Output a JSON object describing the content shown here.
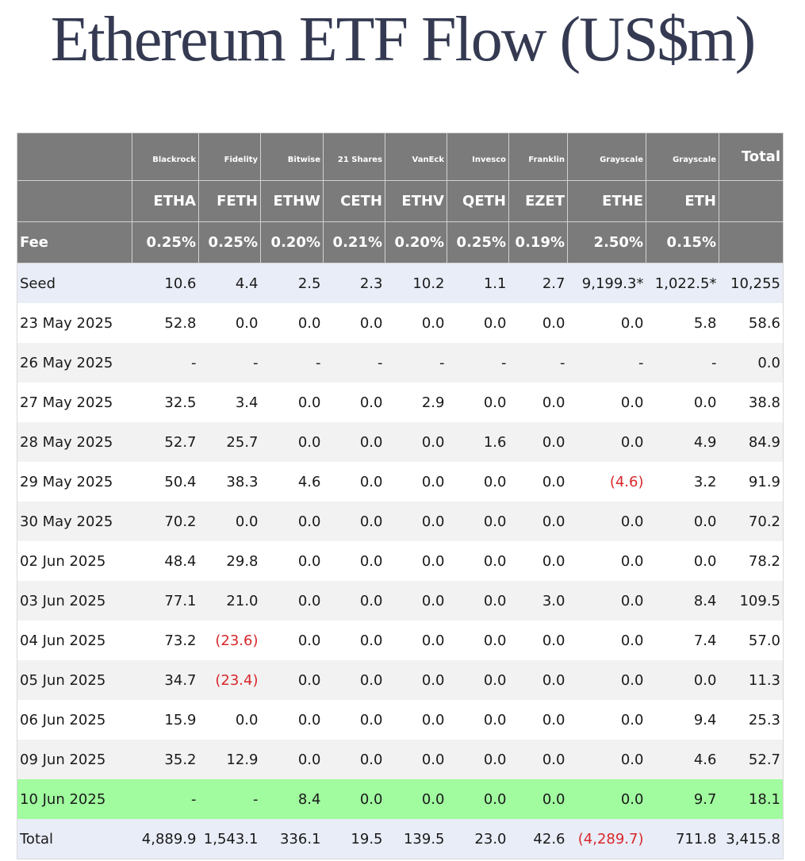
{
  "title": "Ethereum ETF Flow (US$m)",
  "colors": {
    "header_bg": "#7b7b7b",
    "negative": "#d8272b",
    "highlight_row": "#a1fb9f",
    "seed_total_row": "#e9edf7",
    "alt_row": "#f2f2f2"
  },
  "providers": [
    "Blackrock",
    "Fidelity",
    "Bitwise",
    "21 Shares",
    "VanEck",
    "Invesco",
    "Franklin",
    "Grayscale",
    "Grayscale"
  ],
  "total_header": "Total",
  "tickers": [
    "ETHA",
    "FETH",
    "ETHW",
    "CETH",
    "ETHV",
    "QETH",
    "EZET",
    "ETHE",
    "ETH"
  ],
  "fee_label": "Fee",
  "fees": [
    "0.25%",
    "0.25%",
    "0.20%",
    "0.21%",
    "0.20%",
    "0.25%",
    "0.19%",
    "2.50%",
    "0.15%"
  ],
  "rows": [
    {
      "label": "Seed",
      "values": [
        "10.6",
        "4.4",
        "2.5",
        "2.3",
        "10.2",
        "1.1",
        "2.7",
        "9,199.3*",
        "1,022.5*",
        "10,255"
      ],
      "style": "blue"
    },
    {
      "label": "23 May 2025",
      "values": [
        "52.8",
        "0.0",
        "0.0",
        "0.0",
        "0.0",
        "0.0",
        "0.0",
        "0.0",
        "5.8",
        "58.6"
      ],
      "style": "white"
    },
    {
      "label": "26 May 2025",
      "values": [
        "-",
        "-",
        "-",
        "-",
        "-",
        "-",
        "-",
        "-",
        "-",
        "0.0"
      ],
      "style": "grey"
    },
    {
      "label": "27 May 2025",
      "values": [
        "32.5",
        "3.4",
        "0.0",
        "0.0",
        "2.9",
        "0.0",
        "0.0",
        "0.0",
        "0.0",
        "38.8"
      ],
      "style": "white"
    },
    {
      "label": "28 May 2025",
      "values": [
        "52.7",
        "25.7",
        "0.0",
        "0.0",
        "0.0",
        "1.6",
        "0.0",
        "0.0",
        "4.9",
        "84.9"
      ],
      "style": "grey"
    },
    {
      "label": "29 May 2025",
      "values": [
        "50.4",
        "38.3",
        "4.6",
        "0.0",
        "0.0",
        "0.0",
        "0.0",
        "(4.6)",
        "3.2",
        "91.9"
      ],
      "style": "white"
    },
    {
      "label": "30 May 2025",
      "values": [
        "70.2",
        "0.0",
        "0.0",
        "0.0",
        "0.0",
        "0.0",
        "0.0",
        "0.0",
        "0.0",
        "70.2"
      ],
      "style": "grey"
    },
    {
      "label": "02 Jun 2025",
      "values": [
        "48.4",
        "29.8",
        "0.0",
        "0.0",
        "0.0",
        "0.0",
        "0.0",
        "0.0",
        "0.0",
        "78.2"
      ],
      "style": "white"
    },
    {
      "label": "03 Jun 2025",
      "values": [
        "77.1",
        "21.0",
        "0.0",
        "0.0",
        "0.0",
        "0.0",
        "3.0",
        "0.0",
        "8.4",
        "109.5"
      ],
      "style": "grey"
    },
    {
      "label": "04 Jun 2025",
      "values": [
        "73.2",
        "(23.6)",
        "0.0",
        "0.0",
        "0.0",
        "0.0",
        "0.0",
        "0.0",
        "7.4",
        "57.0"
      ],
      "style": "white"
    },
    {
      "label": "05 Jun 2025",
      "values": [
        "34.7",
        "(23.4)",
        "0.0",
        "0.0",
        "0.0",
        "0.0",
        "0.0",
        "0.0",
        "0.0",
        "11.3"
      ],
      "style": "grey"
    },
    {
      "label": "06 Jun 2025",
      "values": [
        "15.9",
        "0.0",
        "0.0",
        "0.0",
        "0.0",
        "0.0",
        "0.0",
        "0.0",
        "9.4",
        "25.3"
      ],
      "style": "white"
    },
    {
      "label": "09 Jun 2025",
      "values": [
        "35.2",
        "12.9",
        "0.0",
        "0.0",
        "0.0",
        "0.0",
        "0.0",
        "0.0",
        "4.6",
        "52.7"
      ],
      "style": "grey"
    },
    {
      "label": "10 Jun 2025",
      "values": [
        "-",
        "-",
        "8.4",
        "0.0",
        "0.0",
        "0.0",
        "0.0",
        "0.0",
        "9.7",
        "18.1"
      ],
      "style": "green"
    },
    {
      "label": "Total",
      "values": [
        "4,889.9",
        "1,543.1",
        "336.1",
        "19.5",
        "139.5",
        "23.0",
        "42.6",
        "(4,289.7)",
        "711.8",
        "3,415.8"
      ],
      "style": "blue"
    }
  ]
}
